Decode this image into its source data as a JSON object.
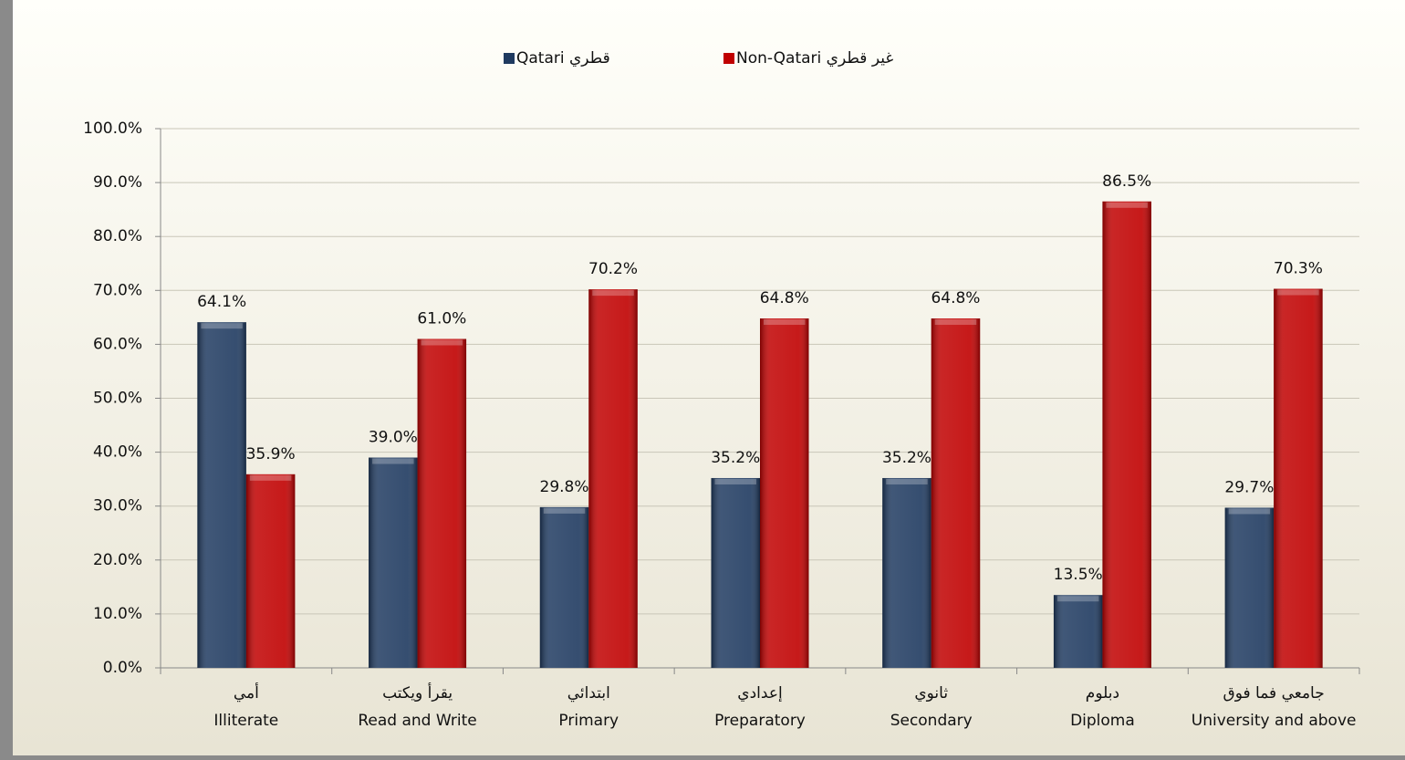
{
  "chart_data": {
    "type": "bar",
    "categories": [
      "أمي\nIlliterate",
      "يقرأ ويكتب\nRead and Write",
      "ابتدائي\nPrimary",
      "إعدادي\nPreparatory",
      "ثانوي\nSecondary",
      "دبلوم\nDiploma",
      "جامعي فما فوق\nUniversity and above"
    ],
    "series": [
      {
        "name": "قطري Qatari",
        "color": "#1f3a60",
        "values": [
          64.1,
          39.0,
          29.8,
          35.2,
          35.2,
          13.5,
          29.7
        ],
        "value_labels": [
          "64.1%",
          "39.0%",
          "29.8%",
          "35.2%",
          "35.2%",
          "13.5%",
          "29.7%"
        ]
      },
      {
        "name": "غير قطري Non-Qatari",
        "color": "#c00000",
        "values": [
          35.9,
          61.0,
          70.2,
          64.8,
          64.8,
          86.5,
          70.3
        ],
        "value_labels": [
          "35.9%",
          "61.0%",
          "70.2%",
          "64.8%",
          "64.8%",
          "86.5%",
          "70.3%"
        ]
      }
    ],
    "ylim": [
      0,
      100
    ],
    "yticks": [
      {
        "value": 0,
        "label": "0.0%"
      },
      {
        "value": 10,
        "label": "10.0%"
      },
      {
        "value": 20,
        "label": "20.0%"
      },
      {
        "value": 30,
        "label": "30.0%"
      },
      {
        "value": 40,
        "label": "40.0%"
      },
      {
        "value": 50,
        "label": "50.0%"
      },
      {
        "value": 60,
        "label": "60.0%"
      },
      {
        "value": 70,
        "label": "70.0%"
      },
      {
        "value": 80,
        "label": "80.0%"
      },
      {
        "value": 90,
        "label": "90.0%"
      },
      {
        "value": 100,
        "label": "100.0%"
      }
    ],
    "grid": true,
    "legend": "top"
  }
}
